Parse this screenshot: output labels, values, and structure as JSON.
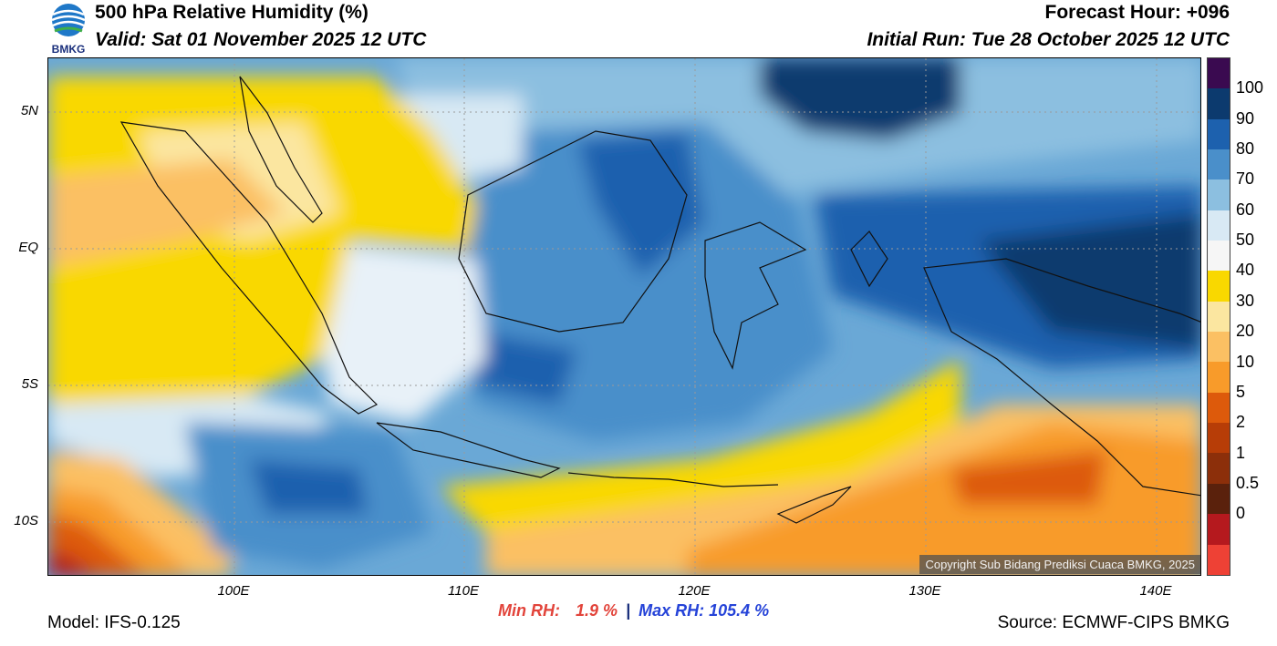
{
  "header": {
    "title": "500 hPa Relative Humidity (%)",
    "valid": "Valid: Sat 01 November 2025 12 UTC",
    "forecast_hour": "Forecast Hour: +096",
    "initial_run": "Initial Run: Tue 28 October 2025 12 UTC",
    "logo_text": "BMKG"
  },
  "axes": {
    "lat_labels": [
      "5N",
      "EQ",
      "5S",
      "10S"
    ],
    "lon_labels": [
      "100E",
      "110E",
      "120E",
      "130E",
      "140E"
    ]
  },
  "colorbar": {
    "labels": [
      "100",
      "90",
      "80",
      "70",
      "60",
      "50",
      "40",
      "30",
      "20",
      "10",
      "5",
      "2",
      "1",
      "0.5",
      "0"
    ],
    "colors": [
      "#3a0a50",
      "#0c3a6e",
      "#1d61ae",
      "#4a8fca",
      "#8cbfe0",
      "#d8e9f4",
      "#f6f6f6",
      "#f9d800",
      "#fbe6a0",
      "#fbc063",
      "#f89b2a",
      "#dd5a0b",
      "#b73d07",
      "#8c2f0a",
      "#5a210c",
      "#b5191e",
      "#ee4135"
    ]
  },
  "stats": {
    "min_label": "Min RH:",
    "min_value": "1.9 %",
    "max_label": "Max RH:",
    "max_value": "105.4 %"
  },
  "footer": {
    "model": "Model: IFS-0.125",
    "source": "Source: ECMWF-CIPS BMKG",
    "copyright": "Copyright Sub Bidang Prediksi Cuaca BMKG, 2025"
  }
}
